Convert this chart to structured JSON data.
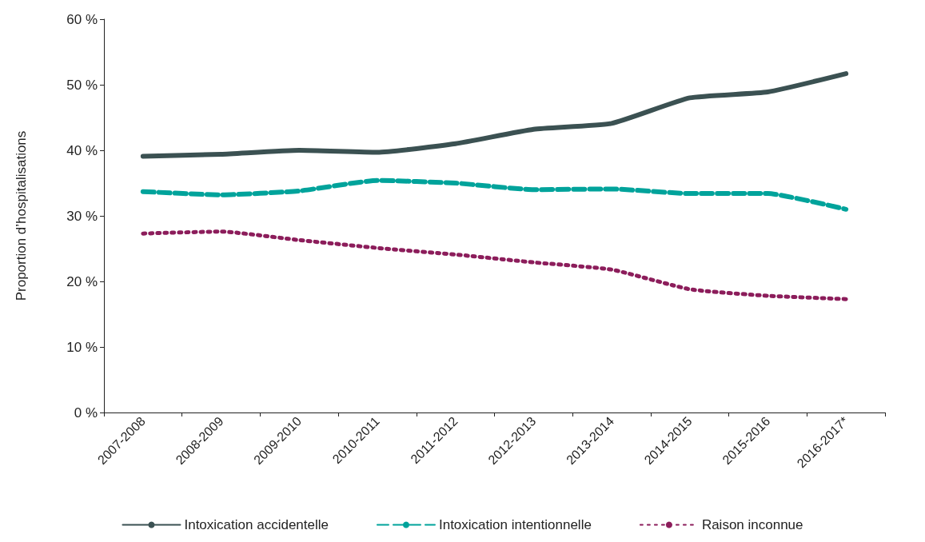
{
  "chart_data": {
    "type": "line",
    "ylabel": "Proportion d’hospitalisations",
    "categories": [
      "2007-2008",
      "2008-2009",
      "2009-2010",
      "2010-2011",
      "2011-2012",
      "2012-2013",
      "2013-2014",
      "2014-2015",
      "2015-2016",
      "2016-2017*"
    ],
    "series": [
      {
        "name": "Intoxication accidentelle",
        "color": "#3b5152",
        "line_style": "solid",
        "values": [
          39.1,
          39.4,
          40.0,
          39.7,
          41.0,
          43.2,
          44.1,
          48.0,
          48.9,
          51.7
        ]
      },
      {
        "name": "Intoxication intentionnelle",
        "color": "#00a39b",
        "line_style": "dashed",
        "values": [
          33.7,
          33.2,
          33.8,
          35.4,
          35.0,
          34.0,
          34.1,
          33.4,
          33.4,
          31.0
        ]
      },
      {
        "name": "Raison inconnue",
        "color": "#8c1d5b",
        "line_style": "dotted",
        "values": [
          27.3,
          27.6,
          26.3,
          25.1,
          24.1,
          22.9,
          21.8,
          18.8,
          17.8,
          17.3
        ]
      }
    ],
    "ylim": [
      0,
      60
    ],
    "yticks": [
      {
        "value": 0,
        "label": "0 %"
      },
      {
        "value": 10,
        "label": "10 %"
      },
      {
        "value": 20,
        "label": "20 %"
      },
      {
        "value": 30,
        "label": "30 %"
      },
      {
        "value": 40,
        "label": "40 %"
      },
      {
        "value": 50,
        "label": "50 %"
      },
      {
        "value": 60,
        "label": "60 %"
      }
    ],
    "grid": false,
    "legend": "bottom",
    "marker": "none"
  }
}
